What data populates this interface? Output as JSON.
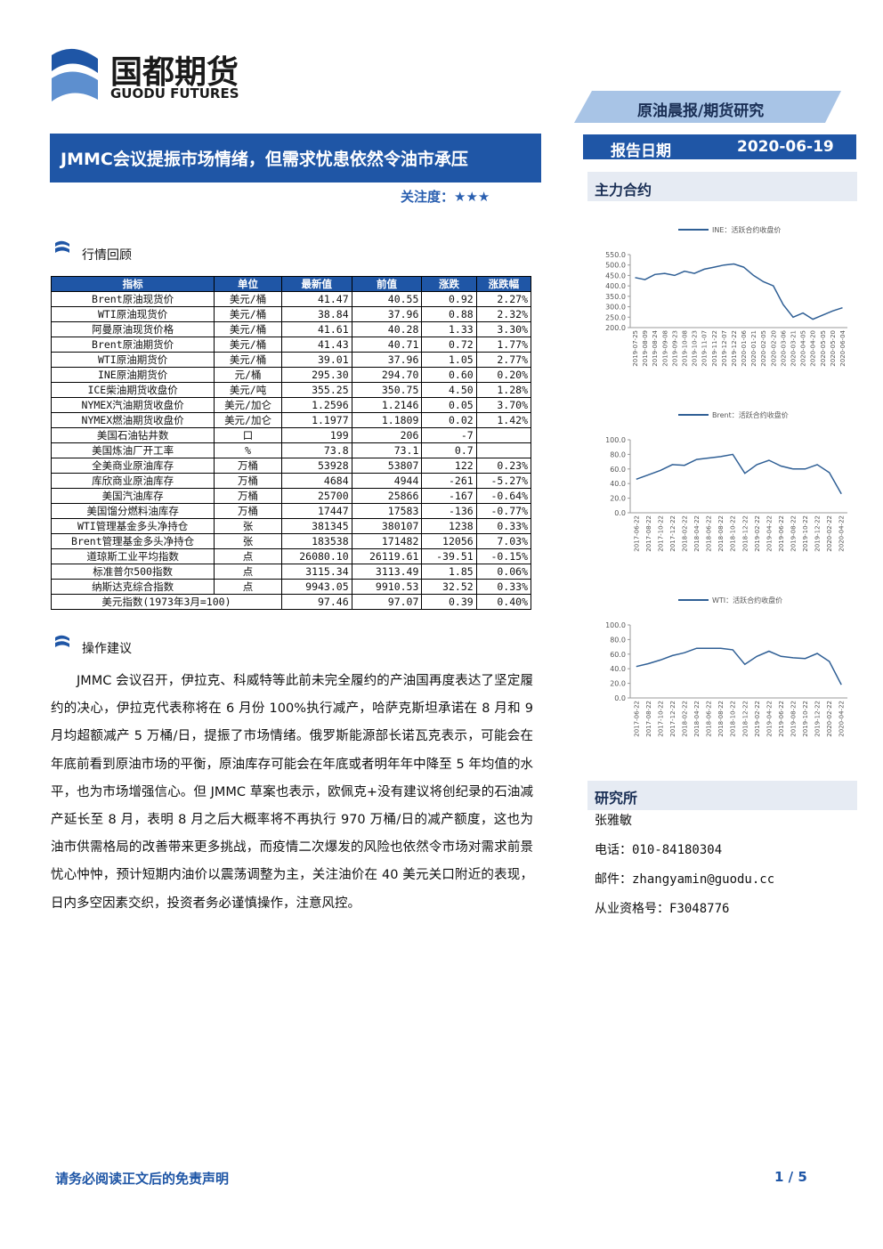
{
  "header": {
    "logo_cn": "国都期货",
    "logo_en": "GUODU FUTURES",
    "tag": "原油晨报/期货研究",
    "title": "JMMC会议提振市场情绪，但需求忧患依然令油市承压",
    "attention_label": "关注度：",
    "attention_stars": "★★★",
    "date_label": "报告日期",
    "date": "2020-06-19"
  },
  "sections": {
    "review": "行情回顾",
    "advice": "操作建议",
    "contracts": "主力合约",
    "institute": "研究所"
  },
  "table": {
    "header": [
      "指标",
      "单位",
      "最新值",
      "前值",
      "涨跌",
      "涨跌幅"
    ],
    "rows": [
      [
        "Brent原油现货价",
        "美元/桶",
        "41.47",
        "40.55",
        "0.92",
        "2.27%"
      ],
      [
        "WTI原油现货价",
        "美元/桶",
        "38.84",
        "37.96",
        "0.88",
        "2.32%"
      ],
      [
        "阿曼原油现货价格",
        "美元/桶",
        "41.61",
        "40.28",
        "1.33",
        "3.30%"
      ],
      [
        "Brent原油期货价",
        "美元/桶",
        "41.43",
        "40.71",
        "0.72",
        "1.77%"
      ],
      [
        "WTI原油期货价",
        "美元/桶",
        "39.01",
        "37.96",
        "1.05",
        "2.77%"
      ],
      [
        "INE原油期货价",
        "元/桶",
        "295.30",
        "294.70",
        "0.60",
        "0.20%"
      ],
      [
        "ICE柴油期货收盘价",
        "美元/吨",
        "355.25",
        "350.75",
        "4.50",
        "1.28%"
      ],
      [
        "NYMEX汽油期货收盘价",
        "美元/加仑",
        "1.2596",
        "1.2146",
        "0.05",
        "3.70%"
      ],
      [
        "NYMEX燃油期货收盘价",
        "美元/加仑",
        "1.1977",
        "1.1809",
        "0.02",
        "1.42%"
      ],
      [
        "美国石油钻井数",
        "口",
        "199",
        "206",
        "-7"
      ],
      [
        "美国炼油厂开工率",
        "%",
        "73.8",
        "73.1",
        "0.7"
      ],
      [
        "全美商业原油库存",
        "万桶",
        "53928",
        "53807",
        "122",
        "0.23%"
      ],
      [
        "库欣商业原油库存",
        "万桶",
        "4684",
        "4944",
        "-261",
        "-5.27%"
      ],
      [
        "美国汽油库存",
        "万桶",
        "25700",
        "25866",
        "-167",
        "-0.64%"
      ],
      [
        "美国馏分燃料油库存",
        "万桶",
        "17447",
        "17583",
        "-136",
        "-0.77%"
      ],
      [
        "WTI管理基金多头净持仓",
        "张",
        "381345",
        "380107",
        "1238",
        "0.33%"
      ],
      [
        "Brent管理基金多头净持仓",
        "张",
        "183538",
        "171482",
        "12056",
        "7.03%"
      ],
      [
        "道琼斯工业平均指数",
        "点",
        "26080.10",
        "26119.61",
        "-39.51",
        "-0.15%"
      ],
      [
        "标准普尔500指数",
        "点",
        "3115.34",
        "3113.49",
        "1.85",
        "0.06%"
      ],
      [
        "纳斯达克综合指数",
        "点",
        "9943.05",
        "9910.53",
        "32.52",
        "0.33%"
      ]
    ],
    "footer_row": [
      "美元指数(1973年3月=100)",
      "97.46",
      "97.07",
      "0.39",
      "0.40%"
    ]
  },
  "advice_text": "JMMC 会议召开，伊拉克、科威特等此前未完全履约的产油国再度表达了坚定履约的决心，伊拉克代表称将在 6 月份 100%执行减产，哈萨克斯坦承诺在 8 月和 9 月均超额减产 5 万桶/日，提振了市场情绪。俄罗斯能源部长诺瓦克表示，可能会在年底前看到原油市场的平衡，原油库存可能会在年底或者明年年中降至 5 年均值的水平，也为市场增强信心。但 JMMC 草案也表示，欧佩克+没有建议将创纪录的石油减产延长至 8 月，表明 8 月之后大概率将不再执行 970 万桶/日的减产额度，这也为油市供需格局的改善带来更多挑战，而疫情二次爆发的风险也依然令市场对需求前景忧心忡忡，预计短期内油价以震荡调整为主，关注油价在 40 美元关口附近的表现，日内多空因素交织，投资者务必谨慎操作，注意风控。",
  "contact": {
    "name": "张雅敏",
    "phone": "电话：010-84180304",
    "email": "邮件：zhangyamin@guodu.cc",
    "license": "从业资格号：F3048776"
  },
  "footer": {
    "disclaimer": "请务必阅读正文后的免责声明",
    "page": "1 / 5"
  },
  "charts": [
    {
      "type": "line",
      "series_name": "INE：活跃合约收盘价",
      "color": "#2f5f95",
      "categories": [
        "2019-07-25",
        "2019-08-09",
        "2019-08-24",
        "2019-09-08",
        "2019-09-23",
        "2019-10-08",
        "2019-10-23",
        "2019-11-07",
        "2019-11-22",
        "2019-12-07",
        "2019-12-22",
        "2020-01-06",
        "2020-01-21",
        "2020-02-05",
        "2020-02-20",
        "2020-03-06",
        "2020-03-21",
        "2020-04-05",
        "2020-04-20",
        "2020-05-05",
        "2020-05-20",
        "2020-06-04"
      ],
      "values": [
        440,
        430,
        455,
        460,
        450,
        470,
        460,
        480,
        490,
        500,
        505,
        490,
        450,
        420,
        400,
        310,
        250,
        270,
        240,
        260,
        280,
        295
      ],
      "ylim": [
        200,
        550
      ],
      "yticks": [
        {
          "value": 200,
          "label": "200.0"
        },
        {
          "value": 250,
          "label": "250.0"
        },
        {
          "value": 300,
          "label": "300.0"
        },
        {
          "value": 350,
          "label": "350.0"
        },
        {
          "value": 400,
          "label": "400.0"
        },
        {
          "value": 450,
          "label": "450.0"
        },
        {
          "value": 500,
          "label": "500.0"
        },
        {
          "value": 550,
          "label": "550.0"
        }
      ]
    },
    {
      "type": "line",
      "series_name": "Brent：活跃合约收盘价",
      "color": "#2f5f95",
      "categories": [
        "2017-06-22",
        "2017-08-22",
        "2017-10-22",
        "2017-12-22",
        "2018-02-22",
        "2018-04-22",
        "2018-06-22",
        "2018-08-22",
        "2018-10-22",
        "2018-12-22",
        "2019-02-22",
        "2019-04-22",
        "2019-06-22",
        "2019-08-22",
        "2019-10-22",
        "2019-12-22",
        "2020-02-22",
        "2020-04-22"
      ],
      "values": [
        46,
        52,
        58,
        66,
        65,
        73,
        75,
        77,
        80,
        54,
        66,
        72,
        64,
        60,
        60,
        66,
        55,
        26
      ],
      "ylim": [
        0,
        100
      ],
      "yticks": [
        {
          "value": 0,
          "label": "0.0"
        },
        {
          "value": 20,
          "label": "20.0"
        },
        {
          "value": 40,
          "label": "40.0"
        },
        {
          "value": 60,
          "label": "60.0"
        },
        {
          "value": 80,
          "label": "80.0"
        },
        {
          "value": 100,
          "label": "100.0"
        }
      ]
    },
    {
      "type": "line",
      "series_name": "WTI：活跃合约收盘价",
      "color": "#2f5f95",
      "categories": [
        "2017-06-22",
        "2017-08-22",
        "2017-10-22",
        "2017-12-22",
        "2018-02-22",
        "2018-04-22",
        "2018-06-22",
        "2018-08-22",
        "2018-10-22",
        "2018-12-22",
        "2019-02-22",
        "2019-04-22",
        "2019-06-22",
        "2019-08-22",
        "2019-10-22",
        "2019-12-22",
        "2020-02-22",
        "2020-04-22"
      ],
      "values": [
        43,
        47,
        52,
        58,
        62,
        68,
        68,
        68,
        66,
        46,
        57,
        64,
        57,
        55,
        54,
        61,
        50,
        18
      ],
      "ylim": [
        0,
        100
      ],
      "yticks": [
        {
          "value": 0,
          "label": "0.0"
        },
        {
          "value": 20,
          "label": "20.0"
        },
        {
          "value": 40,
          "label": "40.0"
        },
        {
          "value": 60,
          "label": "60.0"
        },
        {
          "value": 80,
          "label": "80.0"
        },
        {
          "value": 100,
          "label": "100.0"
        }
      ]
    }
  ]
}
